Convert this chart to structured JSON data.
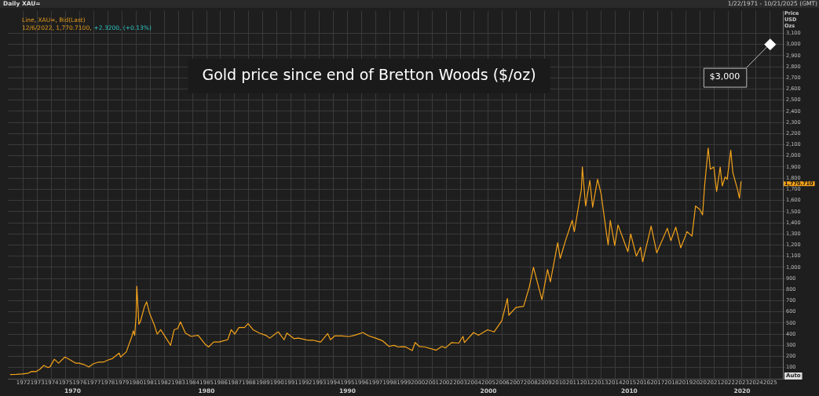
{
  "chart_data": {
    "type": "line",
    "title": "Gold price since end of Bretton Woods ($/oz)",
    "ylabel": "Price USD Ozs",
    "xlim": [
      1970.9,
      2025.9
    ],
    "xticks": [
      1972,
      1973,
      1974,
      1975,
      1976,
      1977,
      1978,
      1979,
      1980,
      1981,
      1982,
      1983,
      1984,
      1985,
      1986,
      1987,
      1988,
      1989,
      1990,
      1991,
      1992,
      1993,
      1994,
      1995,
      1996,
      1997,
      1998,
      1999,
      2000,
      2001,
      2002,
      2003,
      2004,
      2005,
      2006,
      2007,
      2008,
      2009,
      2010,
      2011,
      2012,
      2013,
      2014,
      2015,
      2016,
      2017,
      2018,
      2019,
      2020,
      2021,
      2022,
      2023,
      2024,
      2025
    ],
    "ylim": [
      0,
      3300
    ],
    "yticks": [
      100,
      200,
      300,
      400,
      500,
      600,
      700,
      800,
      900,
      {
        "value": 1000,
        "label": "1,000"
      },
      {
        "value": 1100,
        "label": "1,100"
      },
      {
        "value": 1200,
        "label": "1,200"
      },
      {
        "value": 1300,
        "label": "1,300"
      },
      {
        "value": 1400,
        "label": "1,400"
      },
      {
        "value": 1500,
        "label": "1,500"
      },
      {
        "value": 1600,
        "label": "1,600"
      },
      {
        "value": 1700,
        "label": "1,700"
      },
      {
        "value": 1800,
        "label": "1,800"
      },
      {
        "value": 1900,
        "label": "1,900"
      },
      {
        "value": 2000,
        "label": "2,000"
      },
      {
        "value": 2100,
        "label": "2,100"
      },
      {
        "value": 2200,
        "label": "2,200"
      },
      {
        "value": 2300,
        "label": "2,300"
      },
      {
        "value": 2400,
        "label": "2,400"
      },
      {
        "value": 2500,
        "label": "2,500"
      },
      {
        "value": 2600,
        "label": "2,600"
      },
      {
        "value": 2700,
        "label": "2,700"
      },
      {
        "value": 2800,
        "label": "2,800"
      },
      {
        "value": 2900,
        "label": "2,900"
      },
      {
        "value": 3000,
        "label": "3,000"
      },
      {
        "value": 3100,
        "label": "3,100"
      }
    ],
    "grid": true,
    "legend": false,
    "series": [
      {
        "type": "line",
        "color": "#f5a31a",
        "x": [
          1971.06,
          1971.5,
          1971.9,
          1972.3,
          1972.6,
          1972.9,
          1973.2,
          1973.45,
          1973.75,
          1973.9,
          1974.2,
          1974.5,
          1974.95,
          1975.3,
          1975.7,
          1975.95,
          1976.3,
          1976.65,
          1976.95,
          1977.3,
          1977.7,
          1977.95,
          1978.3,
          1978.8,
          1978.9,
          1979.3,
          1979.7,
          1979.8,
          1979.9,
          1980.0,
          1980.05,
          1980.2,
          1980.3,
          1980.6,
          1980.75,
          1980.95,
          1981.3,
          1981.5,
          1981.75,
          1981.95,
          1982.45,
          1982.7,
          1982.95,
          1983.15,
          1983.5,
          1983.9,
          1984.4,
          1984.9,
          1985.15,
          1985.5,
          1985.9,
          1986.2,
          1986.5,
          1986.75,
          1987.0,
          1987.3,
          1987.7,
          1987.95,
          1988.3,
          1988.75,
          1989.2,
          1989.5,
          1989.95,
          1990.1,
          1990.5,
          1990.7,
          1991.2,
          1991.5,
          1991.9,
          1992.2,
          1992.6,
          1992.9,
          1993.1,
          1993.6,
          1993.8,
          1994.1,
          1994.6,
          1995.1,
          1995.5,
          1996.1,
          1996.5,
          1996.95,
          1997.5,
          1997.95,
          1998.3,
          1998.6,
          1999.1,
          1999.6,
          1999.8,
          2000.1,
          2000.5,
          2001.3,
          2001.7,
          2001.95,
          2002.4,
          2002.9,
          2003.2,
          2003.3,
          2003.95,
          2004.3,
          2004.95,
          2005.4,
          2005.95,
          2006.35,
          2006.45,
          2006.95,
          2007.5,
          2007.9,
          2008.2,
          2008.8,
          2009.2,
          2009.4,
          2009.92,
          2010.1,
          2010.5,
          2010.95,
          2011.1,
          2011.6,
          2011.67,
          2011.9,
          2012.2,
          2012.4,
          2012.75,
          2013.0,
          2013.3,
          2013.5,
          2013.65,
          2013.97,
          2014.2,
          2014.9,
          2015.1,
          2015.5,
          2015.8,
          2015.95,
          2016.55,
          2016.95,
          2017.7,
          2017.95,
          2018.3,
          2018.65,
          2019.1,
          2019.45,
          2019.7,
          2020.0,
          2020.2,
          2020.35,
          2020.6,
          2020.75,
          2021.0,
          2021.2,
          2021.45,
          2021.6,
          2021.8,
          2021.95,
          2022.2,
          2022.35,
          2022.7,
          2022.82,
          2022.93
        ],
        "values": [
          38,
          40,
          43,
          48,
          66,
          64,
          88,
          120,
          100,
          108,
          175,
          140,
          195,
          170,
          140,
          140,
          128,
          105,
          134,
          148,
          150,
          165,
          180,
          230,
          195,
          240,
          380,
          430,
          390,
          560,
          830,
          490,
          510,
          650,
          690,
          590,
          480,
          400,
          440,
          400,
          300,
          440,
          450,
          510,
          410,
          380,
          390,
          310,
          285,
          330,
          330,
          340,
          350,
          440,
          400,
          460,
          460,
          495,
          440,
          410,
          390,
          365,
          410,
          420,
          350,
          410,
          360,
          365,
          355,
          345,
          345,
          335,
          330,
          405,
          350,
          385,
          385,
          378,
          390,
          415,
          385,
          367,
          340,
          290,
          300,
          285,
          287,
          253,
          325,
          290,
          285,
          256,
          290,
          277,
          325,
          320,
          380,
          325,
          415,
          390,
          440,
          420,
          520,
          720,
          570,
          640,
          650,
          820,
          1000,
          710,
          980,
          870,
          1220,
          1080,
          1250,
          1420,
          1320,
          1700,
          1900,
          1550,
          1780,
          1540,
          1790,
          1660,
          1380,
          1200,
          1420,
          1195,
          1380,
          1140,
          1300,
          1100,
          1180,
          1050,
          1370,
          1130,
          1350,
          1240,
          1360,
          1175,
          1320,
          1280,
          1550,
          1520,
          1470,
          1740,
          2070,
          1880,
          1900,
          1680,
          1900,
          1730,
          1810,
          1790,
          2050,
          1850,
          1690,
          1620,
          1771
        ]
      },
      {
        "type": "scatter",
        "color": "#ffffff",
        "marker": "diamond",
        "x": [
          2025
        ],
        "values": [
          3000
        ]
      }
    ],
    "annotations": [
      "Daily XAU=",
      "1/22/1971 - 10/21/2025 (GMT)",
      "Line, XAU=, Bid(Last)",
      "12/6/2022, 1,770.7100,",
      "+2.3200, (+0.13%)",
      {
        "text": "$3,000",
        "x": 2025,
        "y": 3000
      },
      "1,770.710",
      "Auto",
      "1970",
      "1980",
      "1990",
      "2000",
      "2010",
      "2020"
    ]
  }
}
